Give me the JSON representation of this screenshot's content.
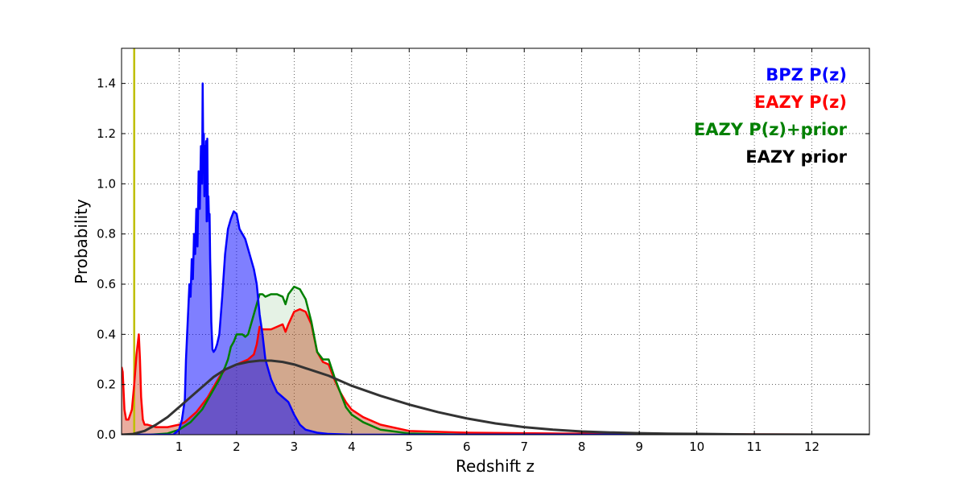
{
  "chart_data": {
    "type": "area",
    "xlabel": "Redshift z",
    "ylabel": "Probability",
    "xlim": [
      0,
      13
    ],
    "ylim": [
      0,
      1.54
    ],
    "x_ticks": [
      1,
      2,
      3,
      4,
      5,
      6,
      7,
      8,
      9,
      10,
      11,
      12
    ],
    "y_ticks": [
      0.0,
      0.2,
      0.4,
      0.6,
      0.8,
      1.0,
      1.2,
      1.4
    ],
    "x_tick_labels": [
      "1",
      "2",
      "3",
      "4",
      "5",
      "6",
      "7",
      "8",
      "9",
      "10",
      "11",
      "12"
    ],
    "y_tick_labels": [
      "0.0",
      "0.2",
      "0.4",
      "0.6",
      "0.8",
      "1.0",
      "1.2",
      "1.4"
    ],
    "grid": true,
    "legend_position": "top-right",
    "vline": {
      "x": 0.22,
      "color": "#bfbf00"
    },
    "series": [
      {
        "name": "BPZ P(z)",
        "color": "#0000ff",
        "fill": "#0000ff",
        "fill_opacity": 0.5,
        "x": [
          0,
          0.9,
          1.0,
          1.05,
          1.1,
          1.12,
          1.15,
          1.18,
          1.2,
          1.22,
          1.24,
          1.26,
          1.28,
          1.3,
          1.32,
          1.34,
          1.36,
          1.38,
          1.4,
          1.41,
          1.42,
          1.43,
          1.44,
          1.45,
          1.46,
          1.47,
          1.48,
          1.49,
          1.5,
          1.51,
          1.52,
          1.53,
          1.54,
          1.55,
          1.56,
          1.58,
          1.6,
          1.63,
          1.66,
          1.7,
          1.75,
          1.8,
          1.85,
          1.9,
          1.95,
          2.0,
          2.05,
          2.1,
          2.15,
          2.2,
          2.25,
          2.3,
          2.35,
          2.4,
          2.45,
          2.5,
          2.6,
          2.7,
          2.8,
          2.9,
          3.0,
          3.1,
          3.2,
          3.4,
          3.6,
          4.0,
          13
        ],
        "y": [
          0,
          0,
          0.02,
          0.06,
          0.14,
          0.3,
          0.45,
          0.6,
          0.55,
          0.7,
          0.62,
          0.8,
          0.72,
          0.9,
          0.75,
          1.05,
          0.9,
          1.15,
          1.0,
          1.4,
          1.1,
          1.2,
          0.95,
          1.15,
          1.0,
          1.17,
          0.85,
          1.18,
          0.9,
          0.95,
          0.85,
          0.88,
          0.7,
          0.6,
          0.45,
          0.34,
          0.33,
          0.34,
          0.36,
          0.4,
          0.55,
          0.72,
          0.82,
          0.86,
          0.89,
          0.88,
          0.82,
          0.8,
          0.78,
          0.74,
          0.7,
          0.66,
          0.6,
          0.48,
          0.4,
          0.3,
          0.22,
          0.17,
          0.15,
          0.13,
          0.08,
          0.04,
          0.02,
          0.008,
          0.003,
          0.0,
          0.0
        ]
      },
      {
        "name": "EAZY P(z)",
        "color": "#ff0000",
        "fill": "#d04a2a",
        "fill_opacity": 0.45,
        "x": [
          0,
          0.02,
          0.05,
          0.08,
          0.12,
          0.18,
          0.22,
          0.26,
          0.3,
          0.32,
          0.34,
          0.37,
          0.4,
          0.45,
          0.6,
          0.8,
          1.0,
          1.1,
          1.2,
          1.3,
          1.4,
          1.5,
          1.6,
          1.7,
          1.8,
          1.9,
          2.0,
          2.1,
          2.2,
          2.3,
          2.35,
          2.4,
          2.45,
          2.5,
          2.6,
          2.7,
          2.8,
          2.85,
          2.9,
          3.0,
          3.1,
          3.2,
          3.3,
          3.4,
          3.5,
          3.6,
          3.7,
          3.8,
          3.9,
          4.0,
          4.2,
          4.5,
          5.0,
          6.0,
          8.0,
          10.0,
          12.0,
          13.0
        ],
        "y": [
          0.27,
          0.25,
          0.1,
          0.06,
          0.06,
          0.1,
          0.2,
          0.32,
          0.4,
          0.3,
          0.15,
          0.06,
          0.04,
          0.04,
          0.03,
          0.03,
          0.04,
          0.05,
          0.07,
          0.09,
          0.12,
          0.15,
          0.19,
          0.23,
          0.26,
          0.27,
          0.28,
          0.29,
          0.3,
          0.32,
          0.36,
          0.43,
          0.42,
          0.42,
          0.42,
          0.43,
          0.44,
          0.41,
          0.44,
          0.49,
          0.5,
          0.49,
          0.44,
          0.33,
          0.29,
          0.28,
          0.22,
          0.17,
          0.13,
          0.1,
          0.07,
          0.04,
          0.015,
          0.008,
          0.004,
          0.002,
          0.001,
          0.0
        ]
      },
      {
        "name": "EAZY P(z)+prior",
        "color": "#008000",
        "fill": "#008000",
        "fill_opacity": 0.1,
        "x": [
          0,
          0.5,
          0.8,
          1.0,
          1.2,
          1.4,
          1.6,
          1.7,
          1.8,
          1.85,
          1.9,
          1.95,
          2.0,
          2.05,
          2.1,
          2.15,
          2.2,
          2.25,
          2.3,
          2.35,
          2.4,
          2.45,
          2.5,
          2.6,
          2.7,
          2.8,
          2.85,
          2.9,
          3.0,
          3.1,
          3.2,
          3.3,
          3.4,
          3.5,
          3.6,
          3.7,
          3.8,
          3.9,
          4.0,
          4.2,
          4.5,
          5.0,
          6.0,
          13.0
        ],
        "y": [
          0.0,
          0.0,
          0.005,
          0.02,
          0.05,
          0.1,
          0.18,
          0.22,
          0.27,
          0.3,
          0.35,
          0.37,
          0.4,
          0.4,
          0.4,
          0.39,
          0.4,
          0.44,
          0.48,
          0.52,
          0.56,
          0.56,
          0.55,
          0.56,
          0.56,
          0.55,
          0.52,
          0.56,
          0.59,
          0.58,
          0.54,
          0.45,
          0.33,
          0.3,
          0.3,
          0.23,
          0.17,
          0.11,
          0.08,
          0.05,
          0.02,
          0.005,
          0.0,
          0.0
        ]
      },
      {
        "name": "EAZY prior",
        "color": "#000000",
        "fill": "none",
        "fill_opacity": 0,
        "x": [
          0,
          0.2,
          0.4,
          0.6,
          0.8,
          1.0,
          1.2,
          1.4,
          1.6,
          1.8,
          2.0,
          2.2,
          2.4,
          2.6,
          2.8,
          3.0,
          3.2,
          3.4,
          3.6,
          3.8,
          4.0,
          4.5,
          5.0,
          5.5,
          6.0,
          6.5,
          7.0,
          7.5,
          8.0,
          8.5,
          9.0,
          9.5,
          10.0,
          11.0,
          12.0,
          13.0
        ],
        "y": [
          0.0,
          0.003,
          0.015,
          0.04,
          0.07,
          0.11,
          0.15,
          0.19,
          0.23,
          0.26,
          0.28,
          0.29,
          0.295,
          0.295,
          0.29,
          0.28,
          0.265,
          0.25,
          0.235,
          0.215,
          0.195,
          0.155,
          0.12,
          0.09,
          0.065,
          0.045,
          0.03,
          0.02,
          0.013,
          0.009,
          0.006,
          0.004,
          0.003,
          0.001,
          0.0005,
          0.0
        ]
      }
    ]
  }
}
